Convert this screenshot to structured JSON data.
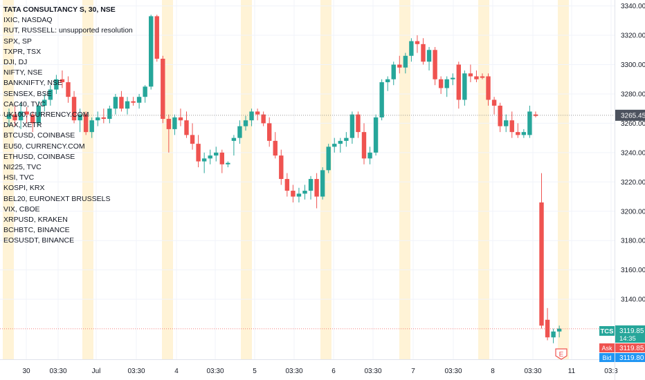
{
  "legend": {
    "title": "TATA CONSULTANCY S, 30, NSE",
    "items": [
      "IXIC, NASDAQ",
      "RUT, RUSSELL: unsupported resolution",
      "SPX, SP",
      "TXPR, TSX",
      "DJI, DJ",
      "NIFTY, NSE",
      "BANKNIFTY, NSE",
      "SENSEX, BSE",
      "CAC40, TVC",
      "UK100, CURRENCY.COM",
      "DAX, XETR",
      "BTCUSD, COINBASE",
      "EU50, CURRENCY.COM",
      "ETHUSD, COINBASE",
      "NI225, TVC",
      "HSI, TVC",
      "KOSPI, KRX",
      "BEL20, EURONEXT BRUSSELS",
      "VIX, CBOE",
      "XRPUSD, KRAKEN",
      "BCHBTC, BINANCE",
      "EOSUSDT, BINANCE"
    ]
  },
  "price_scale": {
    "ticks": [
      "3340.00",
      "3320.00",
      "3300.00",
      "3280.00",
      "3260.00",
      "3240.00",
      "3220.00",
      "3200.00",
      "3180.00",
      "3160.00",
      "3140.00"
    ],
    "crosshair_price": "3265.45"
  },
  "time_scale": {
    "labels": [
      "30",
      "03:30",
      "Jul",
      "03:30",
      "4",
      "03:30",
      "5",
      "03:30",
      "6",
      "03:30",
      "7",
      "03:30",
      "8",
      "03:30",
      "11",
      "03:3"
    ]
  },
  "badges": {
    "symbol": "TCS",
    "last_price": "3119.85",
    "countdown": "14:35",
    "ask_label": "Ask",
    "ask_price": "3119.85",
    "bid_label": "Bid",
    "bid_price": "3119.80",
    "earnings_marker": "E"
  },
  "colors": {
    "up": "#26a69a",
    "down": "#ef5350",
    "session_highlight": "#fff3d6",
    "grid": "#f0f3fa",
    "bid": "#2196f3",
    "text": "#131722"
  },
  "chart_data": {
    "type": "candlestick",
    "title": "TATA CONSULTANCY S, 30, NSE",
    "y_range": [
      3100,
      3345
    ],
    "grid": true,
    "legend_placement": "top-left",
    "candles": [
      {
        "o": 3263,
        "h": 3270,
        "l": 3258,
        "c": 3266
      },
      {
        "o": 3266,
        "h": 3272,
        "l": 3258,
        "c": 3262
      },
      {
        "o": 3262,
        "h": 3274,
        "l": 3256,
        "c": 3268
      },
      {
        "o": 3268,
        "h": 3271,
        "l": 3260,
        "c": 3266
      },
      {
        "o": 3266,
        "h": 3268,
        "l": 3254,
        "c": 3260
      },
      {
        "o": 3260,
        "h": 3275,
        "l": 3258,
        "c": 3272
      },
      {
        "o": 3272,
        "h": 3280,
        "l": 3268,
        "c": 3276
      },
      {
        "o": 3276,
        "h": 3286,
        "l": 3272,
        "c": 3283
      },
      {
        "o": 3283,
        "h": 3293,
        "l": 3280,
        "c": 3290
      },
      {
        "o": 3290,
        "h": 3296,
        "l": 3284,
        "c": 3288
      },
      {
        "o": 3288,
        "h": 3292,
        "l": 3274,
        "c": 3278
      },
      {
        "o": 3278,
        "h": 3282,
        "l": 3260,
        "c": 3262
      },
      {
        "o": 3262,
        "h": 3270,
        "l": 3254,
        "c": 3266
      },
      {
        "o": 3266,
        "h": 3268,
        "l": 3252,
        "c": 3254
      },
      {
        "o": 3254,
        "h": 3264,
        "l": 3250,
        "c": 3262
      },
      {
        "o": 3262,
        "h": 3268,
        "l": 3258,
        "c": 3264
      },
      {
        "o": 3264,
        "h": 3270,
        "l": 3260,
        "c": 3263
      },
      {
        "o": 3263,
        "h": 3272,
        "l": 3260,
        "c": 3270
      },
      {
        "o": 3270,
        "h": 3280,
        "l": 3266,
        "c": 3278
      },
      {
        "o": 3278,
        "h": 3282,
        "l": 3268,
        "c": 3270
      },
      {
        "o": 3270,
        "h": 3278,
        "l": 3266,
        "c": 3275
      },
      {
        "o": 3275,
        "h": 3278,
        "l": 3272,
        "c": 3274
      },
      {
        "o": 3274,
        "h": 3280,
        "l": 3270,
        "c": 3278
      },
      {
        "o": 3278,
        "h": 3286,
        "l": 3274,
        "c": 3285
      },
      {
        "o": 3285,
        "h": 3334,
        "l": 3283,
        "c": 3333
      },
      {
        "o": 3333,
        "h": 3334,
        "l": 3302,
        "c": 3304
      },
      {
        "o": 3304,
        "h": 3306,
        "l": 3260,
        "c": 3263
      },
      {
        "o": 3263,
        "h": 3266,
        "l": 3240,
        "c": 3256
      },
      {
        "o": 3256,
        "h": 3266,
        "l": 3252,
        "c": 3264
      },
      {
        "o": 3264,
        "h": 3270,
        "l": 3258,
        "c": 3262
      },
      {
        "o": 3262,
        "h": 3268,
        "l": 3250,
        "c": 3252
      },
      {
        "o": 3252,
        "h": 3260,
        "l": 3242,
        "c": 3246
      },
      {
        "o": 3246,
        "h": 3252,
        "l": 3230,
        "c": 3234
      },
      {
        "o": 3234,
        "h": 3240,
        "l": 3226,
        "c": 3236
      },
      {
        "o": 3236,
        "h": 3242,
        "l": 3232,
        "c": 3238
      },
      {
        "o": 3238,
        "h": 3244,
        "l": 3234,
        "c": 3240
      },
      {
        "o": 3240,
        "h": 3242,
        "l": 3226,
        "c": 3232
      },
      {
        "o": 3232,
        "h": 3234,
        "l": 3230,
        "c": 3233
      },
      {
        "o": 3248,
        "h": 3252,
        "l": 3238,
        "c": 3250
      },
      {
        "o": 3250,
        "h": 3262,
        "l": 3246,
        "c": 3258
      },
      {
        "o": 3258,
        "h": 3265,
        "l": 3255,
        "c": 3262
      },
      {
        "o": 3262,
        "h": 3270,
        "l": 3258,
        "c": 3268
      },
      {
        "o": 3268,
        "h": 3270,
        "l": 3262,
        "c": 3266
      },
      {
        "o": 3266,
        "h": 3268,
        "l": 3258,
        "c": 3260
      },
      {
        "o": 3260,
        "h": 3264,
        "l": 3244,
        "c": 3248
      },
      {
        "o": 3248,
        "h": 3254,
        "l": 3236,
        "c": 3238
      },
      {
        "o": 3238,
        "h": 3242,
        "l": 3218,
        "c": 3222
      },
      {
        "o": 3222,
        "h": 3226,
        "l": 3210,
        "c": 3214
      },
      {
        "o": 3214,
        "h": 3218,
        "l": 3206,
        "c": 3210
      },
      {
        "o": 3210,
        "h": 3216,
        "l": 3206,
        "c": 3212
      },
      {
        "o": 3212,
        "h": 3218,
        "l": 3208,
        "c": 3214
      },
      {
        "o": 3214,
        "h": 3224,
        "l": 3208,
        "c": 3222
      },
      {
        "o": 3222,
        "h": 3226,
        "l": 3202,
        "c": 3210
      },
      {
        "o": 3210,
        "h": 3230,
        "l": 3208,
        "c": 3228
      },
      {
        "o": 3228,
        "h": 3246,
        "l": 3226,
        "c": 3244
      },
      {
        "o": 3244,
        "h": 3250,
        "l": 3240,
        "c": 3246
      },
      {
        "o": 3246,
        "h": 3250,
        "l": 3240,
        "c": 3248
      },
      {
        "o": 3248,
        "h": 3254,
        "l": 3244,
        "c": 3250
      },
      {
        "o": 3250,
        "h": 3268,
        "l": 3246,
        "c": 3266
      },
      {
        "o": 3266,
        "h": 3268,
        "l": 3250,
        "c": 3254
      },
      {
        "o": 3254,
        "h": 3260,
        "l": 3232,
        "c": 3236
      },
      {
        "o": 3236,
        "h": 3244,
        "l": 3232,
        "c": 3240
      },
      {
        "o": 3240,
        "h": 3266,
        "l": 3238,
        "c": 3264
      },
      {
        "o": 3264,
        "h": 3290,
        "l": 3262,
        "c": 3288
      },
      {
        "o": 3288,
        "h": 3292,
        "l": 3282,
        "c": 3290
      },
      {
        "o": 3290,
        "h": 3302,
        "l": 3286,
        "c": 3300
      },
      {
        "o": 3300,
        "h": 3306,
        "l": 3294,
        "c": 3298
      },
      {
        "o": 3298,
        "h": 3308,
        "l": 3294,
        "c": 3306
      },
      {
        "o": 3306,
        "h": 3318,
        "l": 3302,
        "c": 3316
      },
      {
        "o": 3316,
        "h": 3320,
        "l": 3308,
        "c": 3314
      },
      {
        "o": 3314,
        "h": 3318,
        "l": 3300,
        "c": 3302
      },
      {
        "o": 3302,
        "h": 3312,
        "l": 3296,
        "c": 3310
      },
      {
        "o": 3310,
        "h": 3312,
        "l": 3286,
        "c": 3290
      },
      {
        "o": 3290,
        "h": 3292,
        "l": 3280,
        "c": 3284
      },
      {
        "o": 3284,
        "h": 3292,
        "l": 3278,
        "c": 3290
      },
      {
        "o": 3290,
        "h": 3294,
        "l": 3286,
        "c": 3291
      },
      {
        "o": 3300,
        "h": 3302,
        "l": 3270,
        "c": 3276
      },
      {
        "o": 3276,
        "h": 3296,
        "l": 3272,
        "c": 3294
      },
      {
        "o": 3294,
        "h": 3300,
        "l": 3288,
        "c": 3292
      },
      {
        "o": 3292,
        "h": 3296,
        "l": 3288,
        "c": 3290
      },
      {
        "o": 3292,
        "h": 3294,
        "l": 3290,
        "c": 3291
      },
      {
        "o": 3292,
        "h": 3294,
        "l": 3272,
        "c": 3276
      },
      {
        "o": 3276,
        "h": 3278,
        "l": 3266,
        "c": 3272
      },
      {
        "o": 3272,
        "h": 3274,
        "l": 3254,
        "c": 3258
      },
      {
        "o": 3258,
        "h": 3266,
        "l": 3254,
        "c": 3262
      },
      {
        "o": 3262,
        "h": 3268,
        "l": 3250,
        "c": 3254
      },
      {
        "o": 3254,
        "h": 3260,
        "l": 3250,
        "c": 3252
      },
      {
        "o": 3252,
        "h": 3256,
        "l": 3250,
        "c": 3254
      },
      {
        "o": 3252,
        "h": 3272,
        "l": 3250,
        "c": 3268
      },
      {
        "o": 3266,
        "h": 3268,
        "l": 3264,
        "c": 3265
      },
      {
        "o": 3206,
        "h": 3226,
        "l": 3120,
        "c": 3122
      },
      {
        "o": 3126,
        "h": 3134,
        "l": 3112,
        "c": 3114
      },
      {
        "o": 3114,
        "h": 3120,
        "l": 3110,
        "c": 3118
      },
      {
        "o": 3118,
        "h": 3122,
        "l": 3114,
        "c": 3120
      }
    ]
  }
}
